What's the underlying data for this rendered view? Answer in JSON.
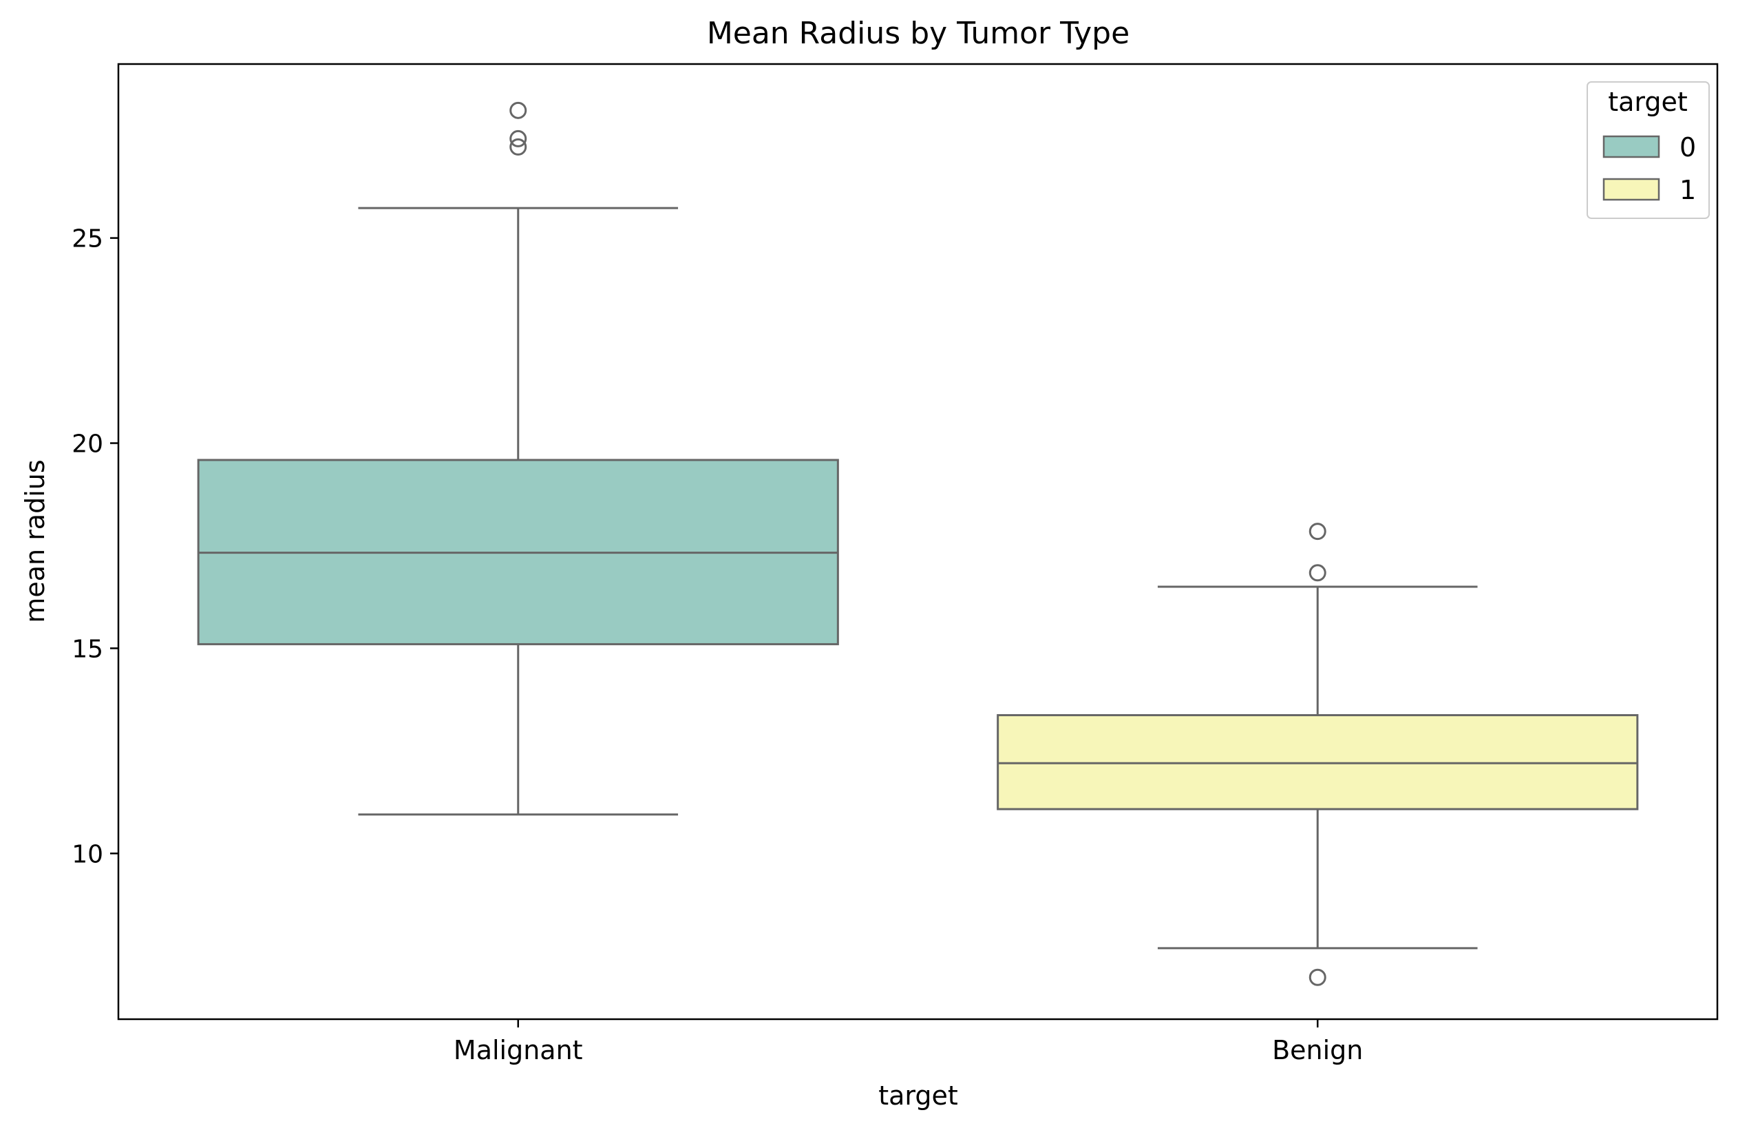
{
  "chart_data": {
    "type": "box",
    "title": "Mean Radius by Tumor Type",
    "xlabel": "target",
    "ylabel": "mean radius",
    "categories": [
      "Malignant",
      "Benign"
    ],
    "ylim": [
      5.96,
      29.24
    ],
    "yticks": [
      10,
      15,
      20,
      25
    ],
    "grid": false,
    "legend": {
      "title": "target",
      "position": "top-right",
      "entries": [
        {
          "label": "0",
          "color": "#99cbc2"
        },
        {
          "label": "1",
          "color": "#f7f6b9"
        }
      ]
    },
    "series": [
      {
        "category": "Malignant",
        "hue": "0",
        "color": "#99cbc2",
        "whisker_low": 10.95,
        "q1": 15.1,
        "median": 17.33,
        "q3": 19.59,
        "whisker_high": 25.73,
        "outliers": [
          27.22,
          27.42,
          28.11
        ]
      },
      {
        "category": "Benign",
        "hue": "1",
        "color": "#f7f6b9",
        "whisker_low": 7.69,
        "q1": 11.08,
        "median": 12.2,
        "q3": 13.37,
        "whisker_high": 16.5,
        "outliers": [
          6.98,
          16.84,
          17.85
        ]
      }
    ]
  }
}
